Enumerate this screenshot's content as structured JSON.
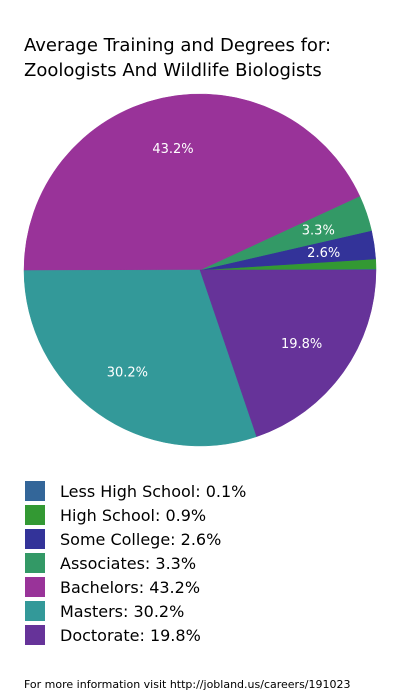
{
  "chart_data": {
    "type": "pie",
    "title_lines": [
      "Average Training and Degrees for:",
      "Zoologists And Wildlife Biologists"
    ],
    "slices": [
      {
        "name": "Less High School",
        "value": 0.1,
        "color": "#336699",
        "legend": "Less High School: 0.1%",
        "label": ""
      },
      {
        "name": "High School",
        "value": 0.9,
        "color": "#339933",
        "legend": "High School: 0.9%",
        "label": ""
      },
      {
        "name": "Some College",
        "value": 2.6,
        "color": "#333399",
        "legend": "Some College: 2.6%",
        "label": "2.6%"
      },
      {
        "name": "Associates",
        "value": 3.3,
        "color": "#339966",
        "legend": "Associates: 3.3%",
        "label": "3.3%"
      },
      {
        "name": "Bachelors",
        "value": 43.2,
        "color": "#993399",
        "legend": "Bachelors: 43.2%",
        "label": "43.2%"
      },
      {
        "name": "Masters",
        "value": 30.2,
        "color": "#339999",
        "legend": "Masters: 30.2%",
        "label": "30.2%"
      },
      {
        "name": "Doctorate",
        "value": 19.8,
        "color": "#663399",
        "legend": "Doctorate: 19.8%",
        "label": "19.8%"
      }
    ],
    "start_angle_deg": 0,
    "direction": "clockwise",
    "legend_position": "bottom"
  },
  "footer": "For more information visit http://jobland.us/careers/191023"
}
